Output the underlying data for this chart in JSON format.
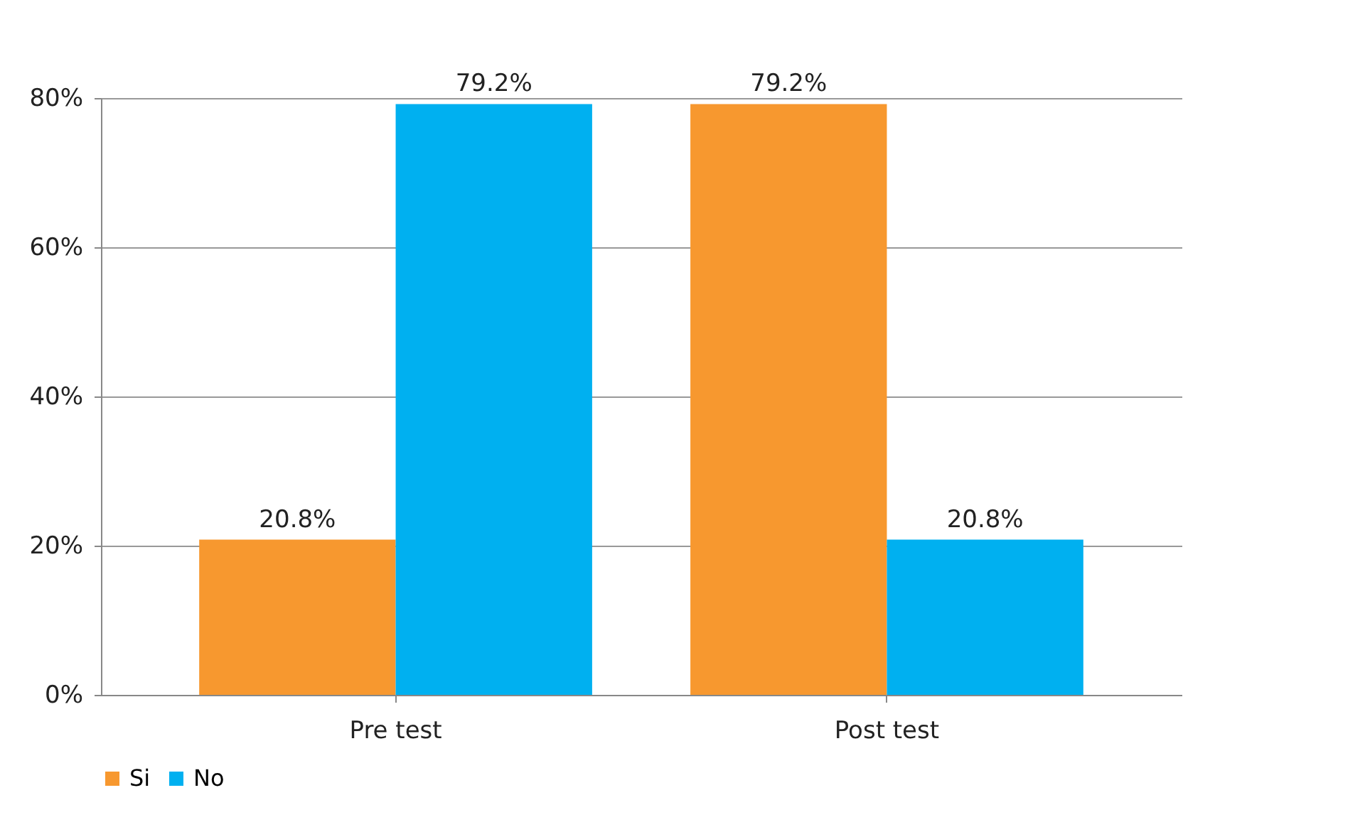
{
  "chart_data": {
    "type": "bar",
    "categories": [
      "Pre test",
      "Post test"
    ],
    "series": [
      {
        "name": "Si",
        "color": "#f7982f",
        "values": [
          20.8,
          79.2
        ],
        "value_labels": [
          "20.8%",
          "79.2%"
        ]
      },
      {
        "name": "No",
        "color": "#00b0f0",
        "values": [
          79.2,
          20.8
        ],
        "value_labels": [
          "79.2%",
          "20.8%"
        ]
      }
    ],
    "ylim": [
      0,
      80
    ],
    "yticks": [
      {
        "value": 0,
        "label": "0%"
      },
      {
        "value": 20,
        "label": "20%"
      },
      {
        "value": 40,
        "label": "40%"
      },
      {
        "value": 60,
        "label": "60%"
      },
      {
        "value": 80,
        "label": "80%"
      }
    ],
    "grid": "y",
    "legend": "bottom"
  }
}
